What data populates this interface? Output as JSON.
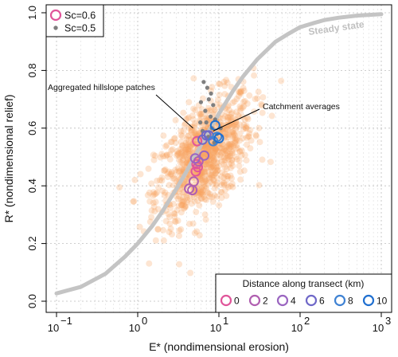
{
  "chart_data": {
    "type": "scatter",
    "x_scale": "log",
    "xlim": [
      0.1,
      1000
    ],
    "ylim": [
      0,
      1
    ],
    "xlabel": "E* (nondimensional erosion)",
    "ylabel": "R* (nondimensional relief)",
    "x_ticks": [
      {
        "value": 0.1,
        "base": "10",
        "exp": "−1"
      },
      {
        "value": 1,
        "base": "10",
        "exp": "0"
      },
      {
        "value": 10,
        "base": "10",
        "exp": "1"
      },
      {
        "value": 100,
        "base": "10",
        "exp": "2"
      },
      {
        "value": 1000,
        "base": "10",
        "exp": "3"
      }
    ],
    "y_ticks": [
      "0.0",
      "0.2",
      "0.4",
      "0.6",
      "0.8",
      "1.0"
    ],
    "grid": true,
    "legend": {
      "position": "top-left",
      "entries": [
        {
          "label": "Sc=0.6",
          "marker": "open-circle",
          "color": "#e0559a"
        },
        {
          "label": "Sc=0.5",
          "marker": "filled-dot",
          "color": "#7f7f7f"
        }
      ]
    },
    "steady_state": {
      "label": "Steady state",
      "color": "#c4c4c4",
      "points": [
        [
          0.1,
          0.027
        ],
        [
          0.2,
          0.05
        ],
        [
          0.4,
          0.095
        ],
        [
          0.7,
          0.155
        ],
        [
          1,
          0.2
        ],
        [
          1.5,
          0.26
        ],
        [
          2,
          0.31
        ],
        [
          3,
          0.39
        ],
        [
          4,
          0.45
        ],
        [
          5,
          0.5
        ],
        [
          7,
          0.575
        ],
        [
          10,
          0.65
        ],
        [
          15,
          0.73
        ],
        [
          20,
          0.78
        ],
        [
          30,
          0.84
        ],
        [
          50,
          0.9
        ],
        [
          70,
          0.925
        ],
        [
          100,
          0.95
        ],
        [
          150,
          0.965
        ],
        [
          200,
          0.975
        ],
        [
          300,
          0.983
        ],
        [
          500,
          0.99
        ],
        [
          1000,
          0.995
        ]
      ]
    },
    "hillslope_patches": {
      "color": "#f7a35c",
      "center_log10E": 0.82,
      "spread_log10E": 0.3,
      "center_R": 0.5,
      "spread_R": 0.11,
      "count": 900
    },
    "sc05_points": {
      "color": "#7f7f7f",
      "points": [
        [
          6.5,
          0.76
        ],
        [
          7.2,
          0.74
        ],
        [
          8.0,
          0.72
        ],
        [
          6.0,
          0.69
        ],
        [
          7.5,
          0.7
        ],
        [
          8.5,
          0.68
        ],
        [
          6.8,
          0.66
        ],
        [
          7.9,
          0.64
        ],
        [
          9.0,
          0.63
        ],
        [
          5.9,
          0.62
        ],
        [
          7.0,
          0.62
        ],
        [
          8.2,
          0.6
        ],
        [
          6.3,
          0.59
        ],
        [
          9.5,
          0.58
        ],
        [
          7.4,
          0.57
        ],
        [
          10.5,
          0.6
        ],
        [
          8.8,
          0.55
        ]
      ]
    },
    "catchment_averages": [
      {
        "E": 5.4,
        "R": 0.555,
        "distance": 0
      },
      {
        "E": 5.3,
        "R": 0.475,
        "distance": 0
      },
      {
        "E": 5.2,
        "R": 0.45,
        "distance": 1
      },
      {
        "E": 5.5,
        "R": 0.465,
        "distance": 1
      },
      {
        "E": 4.9,
        "R": 0.415,
        "distance": 2
      },
      {
        "E": 5.6,
        "R": 0.485,
        "distance": 2
      },
      {
        "E": 4.3,
        "R": 0.39,
        "distance": 3
      },
      {
        "E": 4.7,
        "R": 0.385,
        "distance": 3
      },
      {
        "E": 5.1,
        "R": 0.495,
        "distance": 4
      },
      {
        "E": 6.6,
        "R": 0.505,
        "distance": 4
      },
      {
        "E": 6.3,
        "R": 0.56,
        "distance": 6
      },
      {
        "E": 7.0,
        "R": 0.575,
        "distance": 6
      },
      {
        "E": 7.5,
        "R": 0.575,
        "distance": 7
      },
      {
        "E": 8.5,
        "R": 0.555,
        "distance": 8
      },
      {
        "E": 9.5,
        "R": 0.57,
        "distance": 9
      },
      {
        "E": 9.0,
        "R": 0.61,
        "distance": 10
      },
      {
        "E": 10.0,
        "R": 0.565,
        "distance": 10
      }
    ],
    "annotations": [
      {
        "text": "Aggregated hillslope patches",
        "target": [
          4.8,
          0.6
        ]
      },
      {
        "text": "Catchment averages",
        "target": [
          8.5,
          0.59
        ]
      }
    ],
    "colorbar": {
      "title": "Distance along transect (km)",
      "entries": [
        {
          "label": "0",
          "color": "#e0559a"
        },
        {
          "label": "2",
          "color": "#b05fb0"
        },
        {
          "label": "4",
          "color": "#9a65c0"
        },
        {
          "label": "6",
          "color": "#6f68c8"
        },
        {
          "label": "8",
          "color": "#3f82d3"
        },
        {
          "label": "10",
          "color": "#1f6fd0"
        }
      ],
      "stops": [
        {
          "d": 0,
          "color": "#e0559a"
        },
        {
          "d": 2,
          "color": "#b05fb0"
        },
        {
          "d": 4,
          "color": "#9a65c0"
        },
        {
          "d": 6,
          "color": "#6f68c8"
        },
        {
          "d": 8,
          "color": "#3f82d3"
        },
        {
          "d": 10,
          "color": "#1f6fd0"
        }
      ]
    }
  }
}
